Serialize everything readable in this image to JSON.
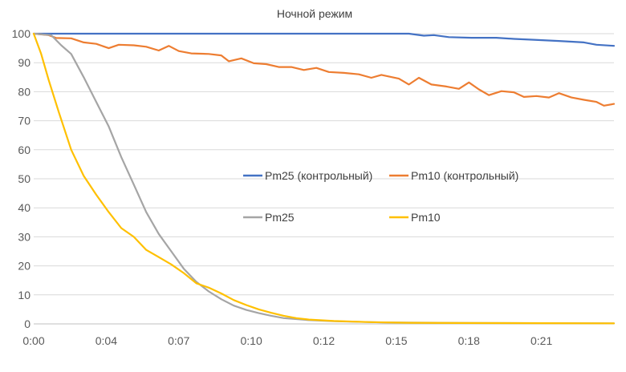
{
  "chart_data": {
    "type": "line",
    "title": "Ночной режим",
    "xlabel": "",
    "ylabel": "",
    "x_ticks": [
      "0:00",
      "0:04",
      "0:07",
      "0:10",
      "0:12",
      "0:15",
      "0:18",
      "0:21"
    ],
    "x_tick_minutes": [
      0,
      2.9,
      5.8,
      8.7,
      11.6,
      14.5,
      17.4,
      20.3
    ],
    "xlim_minutes": [
      0,
      23.2
    ],
    "ylim": [
      0,
      100
    ],
    "y_ticks": [
      0,
      10,
      20,
      30,
      40,
      50,
      60,
      70,
      80,
      90,
      100
    ],
    "grid": "horizontal",
    "legend_placement": "center",
    "series": [
      {
        "name": "Pm25 (контрольный)",
        "color": "#4472C4",
        "points": [
          [
            0,
            100
          ],
          [
            15.0,
            100
          ],
          [
            15.6,
            99.3
          ],
          [
            16.0,
            99.5
          ],
          [
            16.6,
            98.8
          ],
          [
            17.5,
            98.6
          ],
          [
            18.5,
            98.6
          ],
          [
            19.2,
            98.2
          ],
          [
            20.0,
            97.9
          ],
          [
            21.0,
            97.5
          ],
          [
            22.0,
            97.0
          ],
          [
            22.5,
            96.2
          ],
          [
            23.2,
            95.8
          ]
        ]
      },
      {
        "name": "Pm10  (контрольный)",
        "color": "#ED7D31",
        "points": [
          [
            0,
            100
          ],
          [
            0.6,
            99.5
          ],
          [
            0.9,
            98.5
          ],
          [
            1.5,
            98.4
          ],
          [
            2.0,
            97.0
          ],
          [
            2.5,
            96.5
          ],
          [
            3.0,
            95.0
          ],
          [
            3.4,
            96.2
          ],
          [
            4.0,
            96.0
          ],
          [
            4.5,
            95.5
          ],
          [
            5.0,
            94.2
          ],
          [
            5.4,
            95.8
          ],
          [
            5.8,
            94.0
          ],
          [
            6.3,
            93.2
          ],
          [
            7.0,
            93.0
          ],
          [
            7.5,
            92.5
          ],
          [
            7.8,
            90.5
          ],
          [
            8.3,
            91.5
          ],
          [
            8.8,
            89.8
          ],
          [
            9.3,
            89.5
          ],
          [
            9.8,
            88.5
          ],
          [
            10.3,
            88.5
          ],
          [
            10.8,
            87.5
          ],
          [
            11.3,
            88.2
          ],
          [
            11.8,
            86.8
          ],
          [
            12.4,
            86.5
          ],
          [
            13.0,
            86.0
          ],
          [
            13.5,
            84.8
          ],
          [
            13.9,
            85.8
          ],
          [
            14.6,
            84.5
          ],
          [
            15.0,
            82.5
          ],
          [
            15.4,
            84.8
          ],
          [
            15.9,
            82.5
          ],
          [
            16.5,
            81.8
          ],
          [
            17.0,
            81.0
          ],
          [
            17.4,
            83.2
          ],
          [
            17.8,
            80.8
          ],
          [
            18.2,
            78.8
          ],
          [
            18.7,
            80.2
          ],
          [
            19.2,
            79.8
          ],
          [
            19.6,
            78.2
          ],
          [
            20.1,
            78.5
          ],
          [
            20.6,
            78.0
          ],
          [
            21.0,
            79.5
          ],
          [
            21.5,
            78.0
          ],
          [
            22.0,
            77.2
          ],
          [
            22.5,
            76.5
          ],
          [
            22.8,
            75.2
          ],
          [
            23.2,
            75.8
          ]
        ]
      },
      {
        "name": "Pm25",
        "color": "#A5A5A5",
        "points": [
          [
            0,
            100
          ],
          [
            0.7,
            99.5
          ],
          [
            1.1,
            96.0
          ],
          [
            1.5,
            93.0
          ],
          [
            2.0,
            85.0
          ],
          [
            2.5,
            76.5
          ],
          [
            3.0,
            68.0
          ],
          [
            3.5,
            57.5
          ],
          [
            4.0,
            48.0
          ],
          [
            4.5,
            38.5
          ],
          [
            5.0,
            31.0
          ],
          [
            5.5,
            25.0
          ],
          [
            6.0,
            19.0
          ],
          [
            6.5,
            14.5
          ],
          [
            7.0,
            11.2
          ],
          [
            7.5,
            8.5
          ],
          [
            8.0,
            6.3
          ],
          [
            8.5,
            4.8
          ],
          [
            9.0,
            3.7
          ],
          [
            9.5,
            2.8
          ],
          [
            10.0,
            2.0
          ],
          [
            11.0,
            1.3
          ],
          [
            12.0,
            0.9
          ],
          [
            14.0,
            0.5
          ],
          [
            17.5,
            0.3
          ],
          [
            23.2,
            0.2
          ]
        ]
      },
      {
        "name": "Pm10",
        "color": "#FFC000",
        "points": [
          [
            0,
            100
          ],
          [
            0.3,
            93.0
          ],
          [
            0.6,
            84.0
          ],
          [
            1.0,
            73.0
          ],
          [
            1.5,
            60.0
          ],
          [
            2.0,
            51.0
          ],
          [
            2.5,
            44.5
          ],
          [
            3.0,
            38.5
          ],
          [
            3.5,
            33.0
          ],
          [
            4.0,
            30.0
          ],
          [
            4.5,
            25.5
          ],
          [
            5.0,
            23.0
          ],
          [
            5.5,
            20.5
          ],
          [
            6.0,
            17.5
          ],
          [
            6.5,
            14.0
          ],
          [
            7.0,
            12.5
          ],
          [
            7.5,
            10.5
          ],
          [
            8.0,
            8.2
          ],
          [
            8.5,
            6.5
          ],
          [
            9.0,
            5.0
          ],
          [
            9.5,
            3.8
          ],
          [
            10.0,
            2.8
          ],
          [
            10.5,
            2.0
          ],
          [
            11.0,
            1.5
          ],
          [
            12.0,
            1.0
          ],
          [
            13.5,
            0.6
          ],
          [
            15.0,
            0.4
          ],
          [
            17.0,
            0.3
          ],
          [
            23.2,
            0.2
          ]
        ]
      }
    ]
  }
}
